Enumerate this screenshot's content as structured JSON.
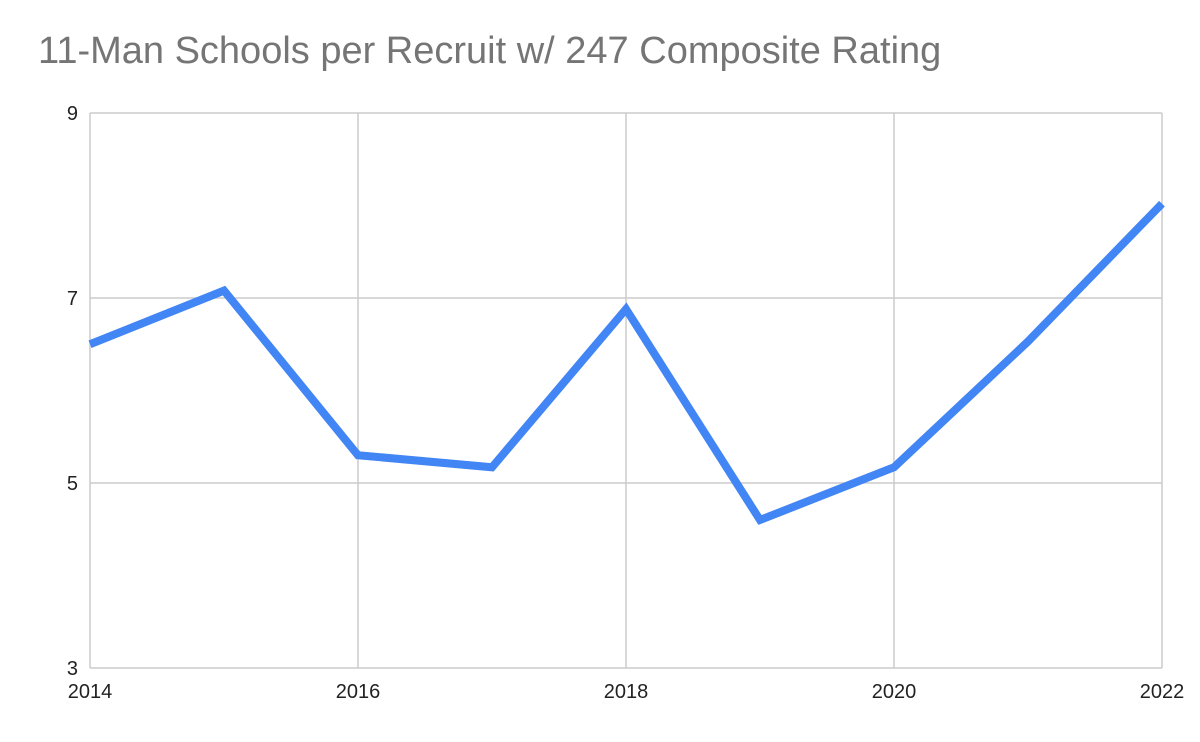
{
  "chart_data": {
    "type": "line",
    "title": "11-Man Schools per Recruit w/ 247 Composite Rating",
    "xlabel": "",
    "ylabel": "",
    "x": [
      2014,
      2015,
      2016,
      2017,
      2018,
      2019,
      2020,
      2021,
      2022
    ],
    "series": [
      {
        "values": [
          6.5,
          7.08,
          5.3,
          5.17,
          6.88,
          4.6,
          5.17,
          6.53,
          8.02
        ]
      }
    ],
    "xlim": [
      2014,
      2022
    ],
    "ylim": [
      3,
      9
    ],
    "x_ticks": [
      "2014",
      "2016",
      "2018",
      "2020",
      "2022"
    ],
    "y_ticks": [
      "3",
      "5",
      "7",
      "9"
    ],
    "grid": true,
    "legend": "none",
    "colors": {
      "line": "#4285f4",
      "grid": "#cccccc",
      "title": "#757575"
    }
  }
}
